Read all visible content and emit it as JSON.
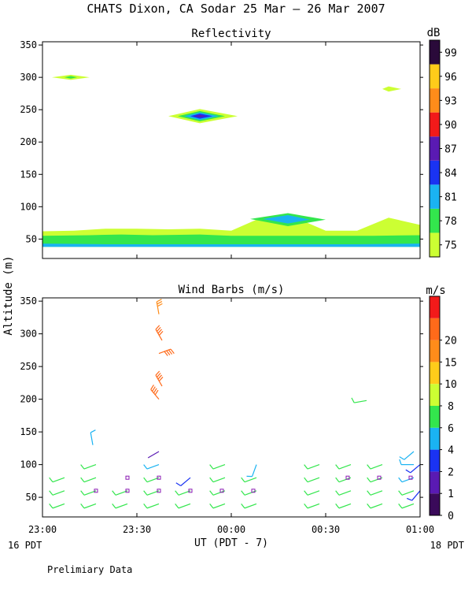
{
  "figure": {
    "title": "CHATS Dixon, CA  Sodar  25 Mar — 26 Mar 2007",
    "shared_ylabel": "Altitude (m)",
    "shared_xlabel": "UT  (PDT - 7)",
    "left_date_label": "16 PDT",
    "right_date_label": "18 PDT",
    "footer_note": "Prelimiary Data"
  },
  "chart_data": [
    {
      "type": "heatmap",
      "title": "Reflectivity",
      "x": [
        "23:00",
        "23:30",
        "00:00",
        "00:30",
        "01:00"
      ],
      "xlim_minutes": [
        0,
        120
      ],
      "ylim": [
        20,
        355
      ],
      "yticks": [
        50,
        100,
        150,
        200,
        250,
        300,
        350
      ],
      "ylabel": "Altitude (m)",
      "grid": false,
      "colorbar": {
        "unit": "dB",
        "labels": [
          "75",
          "78",
          "81",
          "84",
          "87",
          "90",
          "93",
          "96",
          "99"
        ],
        "levels": [
          75,
          78,
          81,
          84,
          87,
          90,
          93,
          96,
          99
        ],
        "colors": [
          "#ccff33",
          "#33e64d",
          "#1ab3f2",
          "#1a33f2",
          "#5a1ab3",
          "#f21a1a",
          "#ff8c1a",
          "#ffcc1a",
          "#2a0a3a"
        ]
      },
      "fields": [
        {
          "level": 75,
          "points": [
            [
              0,
              62
            ],
            [
              10,
              63
            ],
            [
              20,
              66
            ],
            [
              30,
              66
            ],
            [
              40,
              65
            ],
            [
              50,
              66
            ],
            [
              60,
              63
            ],
            [
              68,
              80
            ],
            [
              78,
              88
            ],
            [
              90,
              63
            ],
            [
              100,
              63
            ],
            [
              110,
              83
            ],
            [
              120,
              72
            ],
            [
              120,
              50
            ],
            [
              0,
              50
            ]
          ]
        },
        {
          "level": 78,
          "points": [
            [
              0,
              55
            ],
            [
              15,
              56
            ],
            [
              25,
              57
            ],
            [
              35,
              56
            ],
            [
              50,
              57
            ],
            [
              60,
              55
            ],
            [
              80,
              55
            ],
            [
              105,
              55
            ],
            [
              120,
              56
            ],
            [
              120,
              38
            ],
            [
              0,
              38
            ]
          ]
        },
        {
          "level": 81,
          "points": [
            [
              0,
              43
            ],
            [
              20,
              42
            ],
            [
              40,
              42
            ],
            [
              60,
              42
            ],
            [
              80,
              42
            ],
            [
              100,
              42
            ],
            [
              120,
              43
            ],
            [
              120,
              38
            ],
            [
              0,
              38
            ]
          ]
        },
        {
          "level": 78,
          "points": [
            [
              66,
              81
            ],
            [
              78,
              90
            ],
            [
              90,
              80
            ],
            [
              78,
              70
            ]
          ]
        },
        {
          "level": 81,
          "points": [
            [
              70,
              81
            ],
            [
              78,
              87
            ],
            [
              85,
              80
            ],
            [
              78,
              74
            ]
          ]
        },
        {
          "level": 75,
          "points": [
            [
              3,
              300
            ],
            [
              9,
              304
            ],
            [
              15,
              300
            ],
            [
              9,
              296
            ]
          ]
        },
        {
          "level": 78,
          "points": [
            [
              7,
              300
            ],
            [
              9,
              302
            ],
            [
              11,
              300
            ],
            [
              9,
              298
            ]
          ]
        },
        {
          "level": 75,
          "points": [
            [
              108,
              282
            ],
            [
              110,
              286
            ],
            [
              114,
              282
            ],
            [
              110,
              278
            ]
          ]
        },
        {
          "level": 75,
          "points": [
            [
              40,
              240
            ],
            [
              50,
              251
            ],
            [
              62,
              240
            ],
            [
              50,
              229
            ]
          ]
        },
        {
          "level": 78,
          "points": [
            [
              43,
              240
            ],
            [
              50,
              248
            ],
            [
              58,
              240
            ],
            [
              50,
              232
            ]
          ]
        },
        {
          "level": 81,
          "points": [
            [
              45,
              240
            ],
            [
              50,
              246
            ],
            [
              56,
              240
            ],
            [
              50,
              234
            ]
          ]
        },
        {
          "level": 84,
          "points": [
            [
              47,
              240
            ],
            [
              50,
              244
            ],
            [
              54,
              240
            ],
            [
              50,
              236
            ]
          ]
        },
        {
          "level": 87,
          "points": [
            [
              48,
              240
            ],
            [
              50,
              242
            ],
            [
              52,
              240
            ],
            [
              50,
              238
            ]
          ]
        }
      ]
    },
    {
      "type": "scatter",
      "title": "Wind Barbs (m/s)",
      "x": [
        "23:00",
        "23:30",
        "00:00",
        "00:30",
        "01:00"
      ],
      "xlim_minutes": [
        0,
        120
      ],
      "ylim": [
        20,
        355
      ],
      "yticks": [
        50,
        100,
        150,
        200,
        250,
        300,
        350
      ],
      "ylabel": "Altitude (m)",
      "grid": false,
      "colorbar": {
        "unit": "m/s",
        "labels": [
          "0",
          "1",
          "2",
          "4",
          "6",
          "8",
          "10",
          "15",
          "20"
        ],
        "levels": [
          0,
          1,
          2,
          4,
          6,
          8,
          10,
          15,
          20
        ],
        "colors": [
          "#3a0a5a",
          "#5a1ab3",
          "#1a33f2",
          "#1ab3f2",
          "#33e64d",
          "#ccff33",
          "#ffcc1a",
          "#ff8c1a",
          "#ff6a1a",
          "#f21a1a"
        ]
      },
      "barbs": [
        {
          "t": 7,
          "z": 40,
          "speed": 6,
          "dir": 250
        },
        {
          "t": 7,
          "z": 60,
          "speed": 6,
          "dir": 250
        },
        {
          "t": 7,
          "z": 80,
          "speed": 6,
          "dir": 250
        },
        {
          "t": 17,
          "z": 40,
          "speed": 6,
          "dir": 250
        },
        {
          "t": 17,
          "z": 60,
          "speed": 6,
          "dir": 250
        },
        {
          "t": 17,
          "z": 80,
          "speed": 6,
          "dir": 250
        },
        {
          "t": 17,
          "z": 100,
          "speed": 6,
          "dir": 250
        },
        {
          "t": 16,
          "z": 130,
          "speed": 5,
          "dir": 350
        },
        {
          "t": 27,
          "z": 40,
          "speed": 6,
          "dir": 250
        },
        {
          "t": 27,
          "z": 60,
          "speed": 6,
          "dir": 250
        },
        {
          "t": 37,
          "z": 40,
          "speed": 6,
          "dir": 250
        },
        {
          "t": 37,
          "z": 60,
          "speed": 6,
          "dir": 250
        },
        {
          "t": 37,
          "z": 80,
          "speed": 6,
          "dir": 250
        },
        {
          "t": 37,
          "z": 100,
          "speed": 4,
          "dir": 250
        },
        {
          "t": 37,
          "z": 120,
          "speed": 1,
          "dir": 240
        },
        {
          "t": 37,
          "z": 200,
          "speed": 20,
          "dir": 320
        },
        {
          "t": 38,
          "z": 220,
          "speed": 20,
          "dir": 330
        },
        {
          "t": 37,
          "z": 270,
          "speed": 20,
          "dir": 70
        },
        {
          "t": 38,
          "z": 290,
          "speed": 20,
          "dir": 330
        },
        {
          "t": 37,
          "z": 330,
          "speed": 15,
          "dir": 350
        },
        {
          "t": 47,
          "z": 40,
          "speed": 6,
          "dir": 250
        },
        {
          "t": 47,
          "z": 60,
          "speed": 6,
          "dir": 250
        },
        {
          "t": 47,
          "z": 80,
          "speed": 2,
          "dir": 230
        },
        {
          "t": 58,
          "z": 40,
          "speed": 6,
          "dir": 250
        },
        {
          "t": 58,
          "z": 60,
          "speed": 6,
          "dir": 250
        },
        {
          "t": 58,
          "z": 80,
          "speed": 6,
          "dir": 250
        },
        {
          "t": 58,
          "z": 100,
          "speed": 6,
          "dir": 250
        },
        {
          "t": 68,
          "z": 40,
          "speed": 6,
          "dir": 250
        },
        {
          "t": 68,
          "z": 60,
          "speed": 6,
          "dir": 250
        },
        {
          "t": 68,
          "z": 80,
          "speed": 6,
          "dir": 250
        },
        {
          "t": 68,
          "z": 100,
          "speed": 4,
          "dir": 200
        },
        {
          "t": 88,
          "z": 40,
          "speed": 6,
          "dir": 250
        },
        {
          "t": 88,
          "z": 60,
          "speed": 6,
          "dir": 250
        },
        {
          "t": 88,
          "z": 80,
          "speed": 6,
          "dir": 250
        },
        {
          "t": 88,
          "z": 100,
          "speed": 6,
          "dir": 250
        },
        {
          "t": 98,
          "z": 40,
          "speed": 6,
          "dir": 250
        },
        {
          "t": 98,
          "z": 60,
          "speed": 6,
          "dir": 250
        },
        {
          "t": 98,
          "z": 80,
          "speed": 6,
          "dir": 250
        },
        {
          "t": 98,
          "z": 100,
          "speed": 6,
          "dir": 250
        },
        {
          "t": 103,
          "z": 198,
          "speed": 6,
          "dir": 260
        },
        {
          "t": 108,
          "z": 40,
          "speed": 6,
          "dir": 250
        },
        {
          "t": 108,
          "z": 60,
          "speed": 6,
          "dir": 250
        },
        {
          "t": 108,
          "z": 80,
          "speed": 6,
          "dir": 250
        },
        {
          "t": 108,
          "z": 100,
          "speed": 6,
          "dir": 250
        },
        {
          "t": 118,
          "z": 40,
          "speed": 6,
          "dir": 250
        },
        {
          "t": 118,
          "z": 60,
          "speed": 6,
          "dir": 250
        },
        {
          "t": 118,
          "z": 80,
          "speed": 4,
          "dir": 250
        },
        {
          "t": 118,
          "z": 100,
          "speed": 4,
          "dir": 270
        },
        {
          "t": 118,
          "z": 120,
          "speed": 4,
          "dir": 230
        },
        {
          "t": 120,
          "z": 60,
          "speed": 2,
          "dir": 220
        },
        {
          "t": 120,
          "z": 100,
          "speed": 2,
          "dir": 230
        }
      ],
      "calm_markers": [
        {
          "t": 17,
          "z": 60
        },
        {
          "t": 27,
          "z": 60
        },
        {
          "t": 27,
          "z": 80
        },
        {
          "t": 37,
          "z": 60
        },
        {
          "t": 37,
          "z": 80
        },
        {
          "t": 47,
          "z": 60
        },
        {
          "t": 57,
          "z": 60
        },
        {
          "t": 67,
          "z": 60
        },
        {
          "t": 97,
          "z": 80
        },
        {
          "t": 107,
          "z": 80
        },
        {
          "t": 117,
          "z": 80
        }
      ]
    }
  ]
}
